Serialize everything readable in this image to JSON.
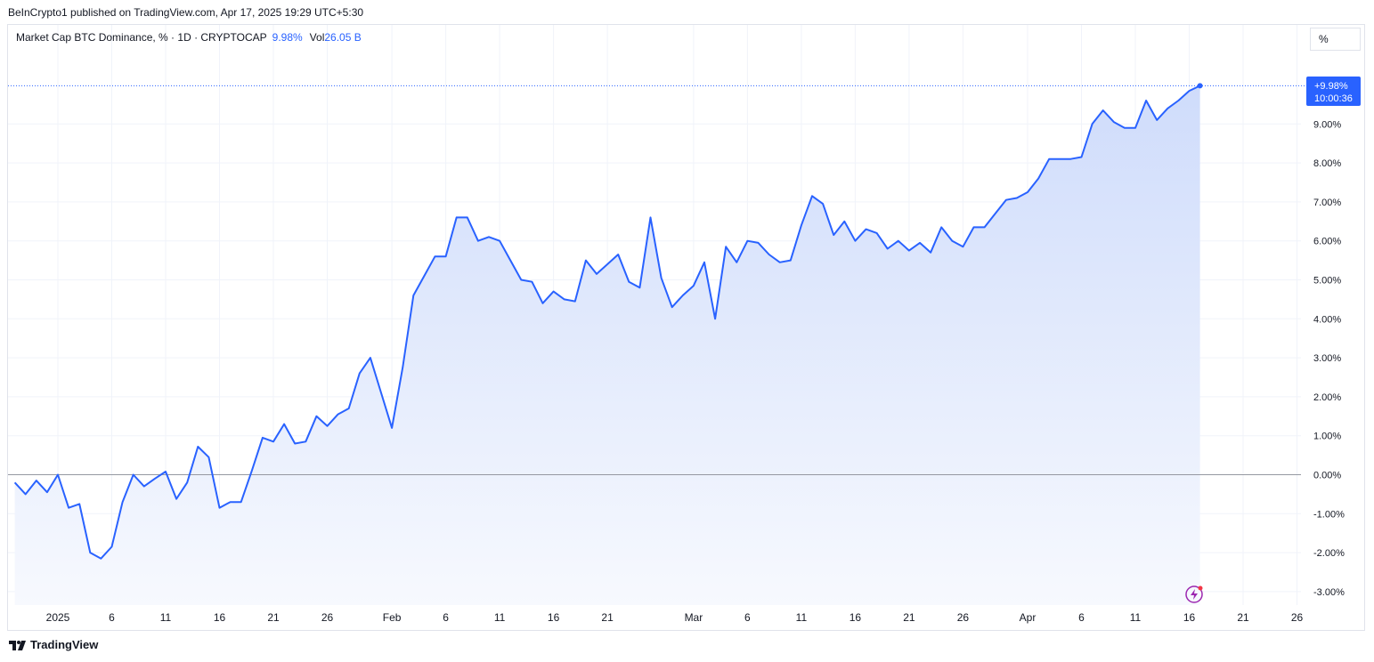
{
  "header": {
    "published_by": "BeInCrypto1 published on TradingView.com, Apr 17, 2025 19:29 UTC+5:30"
  },
  "legend": {
    "symbol": "Market Cap BTC Dominance, % · 1D · CRYPTOCAP",
    "value": "9.98%",
    "vol_label": "Vol",
    "vol_value": "26.05 B"
  },
  "unit_button": "%",
  "footer": {
    "brand": "TradingView"
  },
  "price_tag": {
    "value": "+9.98%",
    "countdown": "10:00:36"
  },
  "colors": {
    "line": "#2962ff",
    "fill_top": "#cfdcfb",
    "fill_bottom": "#f7f9fe",
    "grid": "#f0f3fa",
    "zero_line": "#9598a1",
    "lightning": "#9c27b0"
  },
  "chart_data": {
    "type": "area",
    "title": "Market Cap BTC Dominance, % · 1D · CRYPTOCAP",
    "ylabel": "",
    "xlabel": "",
    "ylim": [
      -3.3,
      11.2
    ],
    "y_ticks": [
      "9.00%",
      "8.00%",
      "7.00%",
      "6.00%",
      "5.00%",
      "4.00%",
      "3.00%",
      "2.00%",
      "1.00%",
      "0.00%",
      "-1.00%",
      "-2.00%",
      "-3.00%"
    ],
    "y_tick_values": [
      9,
      8,
      7,
      6,
      5,
      4,
      3,
      2,
      1,
      0,
      -1,
      -2,
      -3
    ],
    "x_ticks": [
      "2025",
      "6",
      "11",
      "16",
      "21",
      "26",
      "Feb",
      "6",
      "11",
      "16",
      "21",
      "Mar",
      "6",
      "11",
      "16",
      "21",
      "26",
      "Apr",
      "6",
      "11",
      "16",
      "21",
      "26"
    ],
    "x_tick_days": [
      1,
      6,
      11,
      16,
      21,
      26,
      32,
      37,
      42,
      47,
      52,
      60,
      65,
      70,
      75,
      80,
      85,
      91,
      96,
      101,
      106,
      111,
      116
    ],
    "grid": true,
    "series": [
      {
        "days": [
          -3,
          -2,
          -1,
          0,
          1,
          2,
          3,
          4,
          5,
          6,
          7,
          8,
          9,
          10,
          11,
          12,
          13,
          14,
          15,
          16,
          17,
          18,
          19,
          20,
          21,
          22,
          23,
          24,
          25,
          26,
          27,
          28,
          29,
          30,
          31,
          32,
          33,
          34,
          35,
          36,
          37,
          38,
          39,
          40,
          41,
          42,
          43,
          44,
          45,
          46,
          47,
          48,
          49,
          50,
          51,
          52,
          53,
          54,
          55,
          56,
          57,
          58,
          59,
          60,
          61,
          62,
          63,
          64,
          65,
          66,
          67,
          68,
          69,
          70,
          71,
          72,
          73,
          74,
          75,
          76,
          77,
          78,
          79,
          80,
          81,
          82,
          83,
          84,
          85,
          86,
          87,
          88,
          89,
          90,
          91,
          92,
          93,
          94,
          95,
          96,
          97,
          98,
          99,
          100,
          101,
          102,
          103,
          104,
          105,
          106,
          107
        ],
        "values": [
          -0.2,
          -0.5,
          -0.15,
          -0.45,
          0,
          -0.85,
          -0.75,
          -2.0,
          -2.15,
          -1.85,
          -0.7,
          0,
          -0.3,
          -0.1,
          0.08,
          -0.62,
          -0.2,
          0.72,
          0.45,
          -0.85,
          -0.7,
          -0.7,
          0.1,
          0.95,
          0.85,
          1.3,
          0.8,
          0.85,
          1.5,
          1.25,
          1.55,
          1.7,
          2.6,
          3.0,
          2.1,
          1.2,
          2.75,
          4.6,
          5.1,
          5.6,
          5.6,
          6.6,
          6.6,
          6.0,
          6.1,
          6.0,
          5.5,
          5.0,
          4.95,
          4.4,
          4.7,
          4.5,
          4.45,
          5.5,
          5.15,
          5.4,
          5.65,
          4.95,
          4.8,
          6.6,
          5.05,
          4.3,
          4.6,
          4.85,
          5.45,
          4.0,
          5.85,
          5.45,
          6.0,
          5.95,
          5.65,
          5.45,
          5.5,
          6.4,
          7.15,
          6.95,
          6.15,
          6.5,
          6.0,
          6.3,
          6.2,
          5.8,
          6.0,
          5.75,
          5.95,
          5.7,
          6.35,
          6.0,
          5.85,
          6.35,
          6.35,
          6.7,
          7.05,
          7.1,
          7.25,
          7.6,
          8.1,
          8.1,
          8.1,
          8.15,
          9.0,
          9.35,
          9.05,
          8.9,
          8.9,
          9.6,
          9.1,
          9.4,
          9.6,
          9.85,
          9.98
        ]
      }
    ]
  }
}
